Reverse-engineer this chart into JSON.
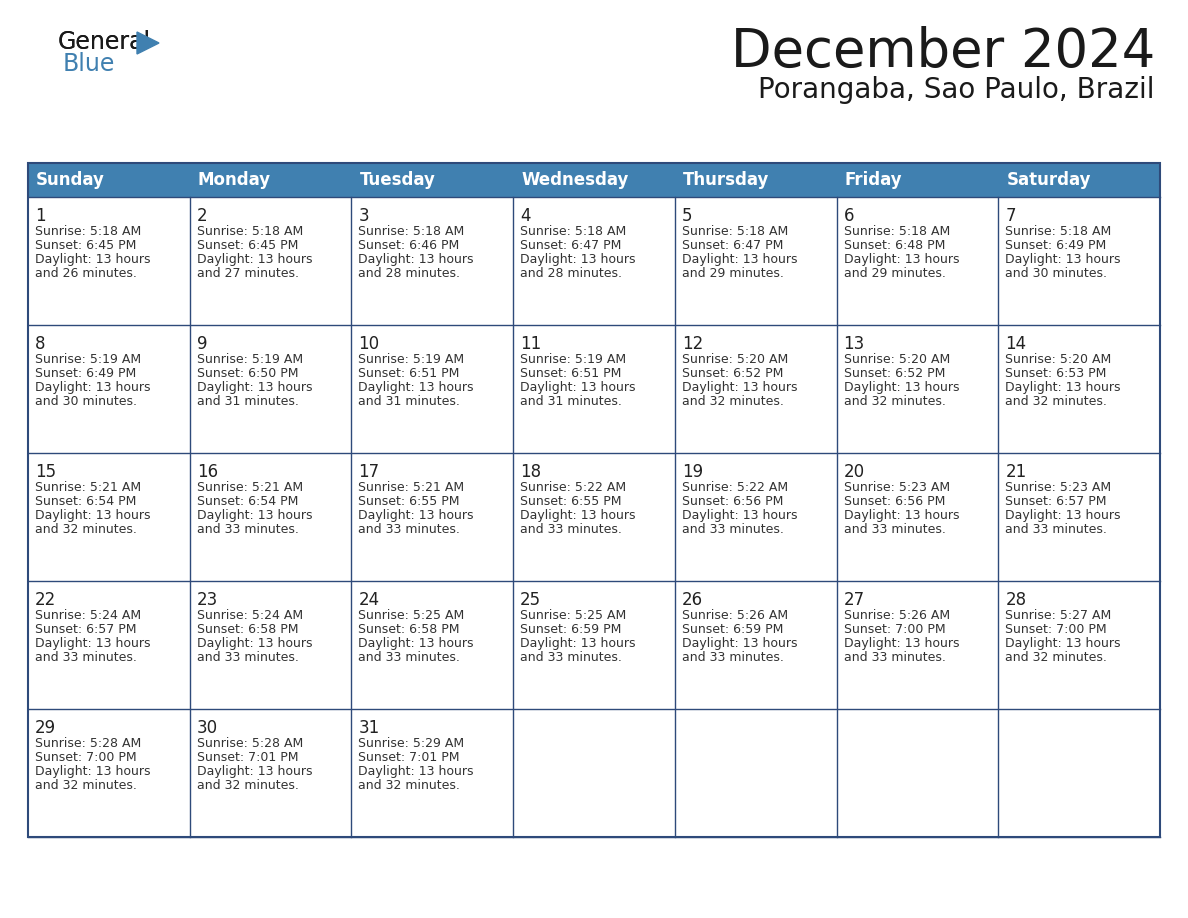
{
  "title": "December 2024",
  "subtitle": "Porangaba, Sao Paulo, Brazil",
  "header_bg": "#4080B0",
  "header_text_color": "#FFFFFF",
  "cell_border_color": "#2E4A7A",
  "days_of_week": [
    "Sunday",
    "Monday",
    "Tuesday",
    "Wednesday",
    "Thursday",
    "Friday",
    "Saturday"
  ],
  "calendar_data": [
    [
      {
        "day": "1",
        "sunrise": "5:18 AM",
        "sunset": "6:45 PM",
        "daylight": "13 hours",
        "daylight2": "and 26 minutes."
      },
      {
        "day": "2",
        "sunrise": "5:18 AM",
        "sunset": "6:45 PM",
        "daylight": "13 hours",
        "daylight2": "and 27 minutes."
      },
      {
        "day": "3",
        "sunrise": "5:18 AM",
        "sunset": "6:46 PM",
        "daylight": "13 hours",
        "daylight2": "and 28 minutes."
      },
      {
        "day": "4",
        "sunrise": "5:18 AM",
        "sunset": "6:47 PM",
        "daylight": "13 hours",
        "daylight2": "and 28 minutes."
      },
      {
        "day": "5",
        "sunrise": "5:18 AM",
        "sunset": "6:47 PM",
        "daylight": "13 hours",
        "daylight2": "and 29 minutes."
      },
      {
        "day": "6",
        "sunrise": "5:18 AM",
        "sunset": "6:48 PM",
        "daylight": "13 hours",
        "daylight2": "and 29 minutes."
      },
      {
        "day": "7",
        "sunrise": "5:18 AM",
        "sunset": "6:49 PM",
        "daylight": "13 hours",
        "daylight2": "and 30 minutes."
      }
    ],
    [
      {
        "day": "8",
        "sunrise": "5:19 AM",
        "sunset": "6:49 PM",
        "daylight": "13 hours",
        "daylight2": "and 30 minutes."
      },
      {
        "day": "9",
        "sunrise": "5:19 AM",
        "sunset": "6:50 PM",
        "daylight": "13 hours",
        "daylight2": "and 31 minutes."
      },
      {
        "day": "10",
        "sunrise": "5:19 AM",
        "sunset": "6:51 PM",
        "daylight": "13 hours",
        "daylight2": "and 31 minutes."
      },
      {
        "day": "11",
        "sunrise": "5:19 AM",
        "sunset": "6:51 PM",
        "daylight": "13 hours",
        "daylight2": "and 31 minutes."
      },
      {
        "day": "12",
        "sunrise": "5:20 AM",
        "sunset": "6:52 PM",
        "daylight": "13 hours",
        "daylight2": "and 32 minutes."
      },
      {
        "day": "13",
        "sunrise": "5:20 AM",
        "sunset": "6:52 PM",
        "daylight": "13 hours",
        "daylight2": "and 32 minutes."
      },
      {
        "day": "14",
        "sunrise": "5:20 AM",
        "sunset": "6:53 PM",
        "daylight": "13 hours",
        "daylight2": "and 32 minutes."
      }
    ],
    [
      {
        "day": "15",
        "sunrise": "5:21 AM",
        "sunset": "6:54 PM",
        "daylight": "13 hours",
        "daylight2": "and 32 minutes."
      },
      {
        "day": "16",
        "sunrise": "5:21 AM",
        "sunset": "6:54 PM",
        "daylight": "13 hours",
        "daylight2": "and 33 minutes."
      },
      {
        "day": "17",
        "sunrise": "5:21 AM",
        "sunset": "6:55 PM",
        "daylight": "13 hours",
        "daylight2": "and 33 minutes."
      },
      {
        "day": "18",
        "sunrise": "5:22 AM",
        "sunset": "6:55 PM",
        "daylight": "13 hours",
        "daylight2": "and 33 minutes."
      },
      {
        "day": "19",
        "sunrise": "5:22 AM",
        "sunset": "6:56 PM",
        "daylight": "13 hours",
        "daylight2": "and 33 minutes."
      },
      {
        "day": "20",
        "sunrise": "5:23 AM",
        "sunset": "6:56 PM",
        "daylight": "13 hours",
        "daylight2": "and 33 minutes."
      },
      {
        "day": "21",
        "sunrise": "5:23 AM",
        "sunset": "6:57 PM",
        "daylight": "13 hours",
        "daylight2": "and 33 minutes."
      }
    ],
    [
      {
        "day": "22",
        "sunrise": "5:24 AM",
        "sunset": "6:57 PM",
        "daylight": "13 hours",
        "daylight2": "and 33 minutes."
      },
      {
        "day": "23",
        "sunrise": "5:24 AM",
        "sunset": "6:58 PM",
        "daylight": "13 hours",
        "daylight2": "and 33 minutes."
      },
      {
        "day": "24",
        "sunrise": "5:25 AM",
        "sunset": "6:58 PM",
        "daylight": "13 hours",
        "daylight2": "and 33 minutes."
      },
      {
        "day": "25",
        "sunrise": "5:25 AM",
        "sunset": "6:59 PM",
        "daylight": "13 hours",
        "daylight2": "and 33 minutes."
      },
      {
        "day": "26",
        "sunrise": "5:26 AM",
        "sunset": "6:59 PM",
        "daylight": "13 hours",
        "daylight2": "and 33 minutes."
      },
      {
        "day": "27",
        "sunrise": "5:26 AM",
        "sunset": "7:00 PM",
        "daylight": "13 hours",
        "daylight2": "and 33 minutes."
      },
      {
        "day": "28",
        "sunrise": "5:27 AM",
        "sunset": "7:00 PM",
        "daylight": "13 hours",
        "daylight2": "and 32 minutes."
      }
    ],
    [
      {
        "day": "29",
        "sunrise": "5:28 AM",
        "sunset": "7:00 PM",
        "daylight": "13 hours",
        "daylight2": "and 32 minutes."
      },
      {
        "day": "30",
        "sunrise": "5:28 AM",
        "sunset": "7:01 PM",
        "daylight": "13 hours",
        "daylight2": "and 32 minutes."
      },
      {
        "day": "31",
        "sunrise": "5:29 AM",
        "sunset": "7:01 PM",
        "daylight": "13 hours",
        "daylight2": "and 32 minutes."
      },
      null,
      null,
      null,
      null
    ]
  ],
  "logo_general_color": "#1a1a1a",
  "logo_blue_color": "#4080B0",
  "logo_triangle_color": "#4080B0",
  "title_fontsize": 38,
  "subtitle_fontsize": 20,
  "header_fontsize": 12,
  "day_num_fontsize": 12,
  "cell_text_fontsize": 9
}
